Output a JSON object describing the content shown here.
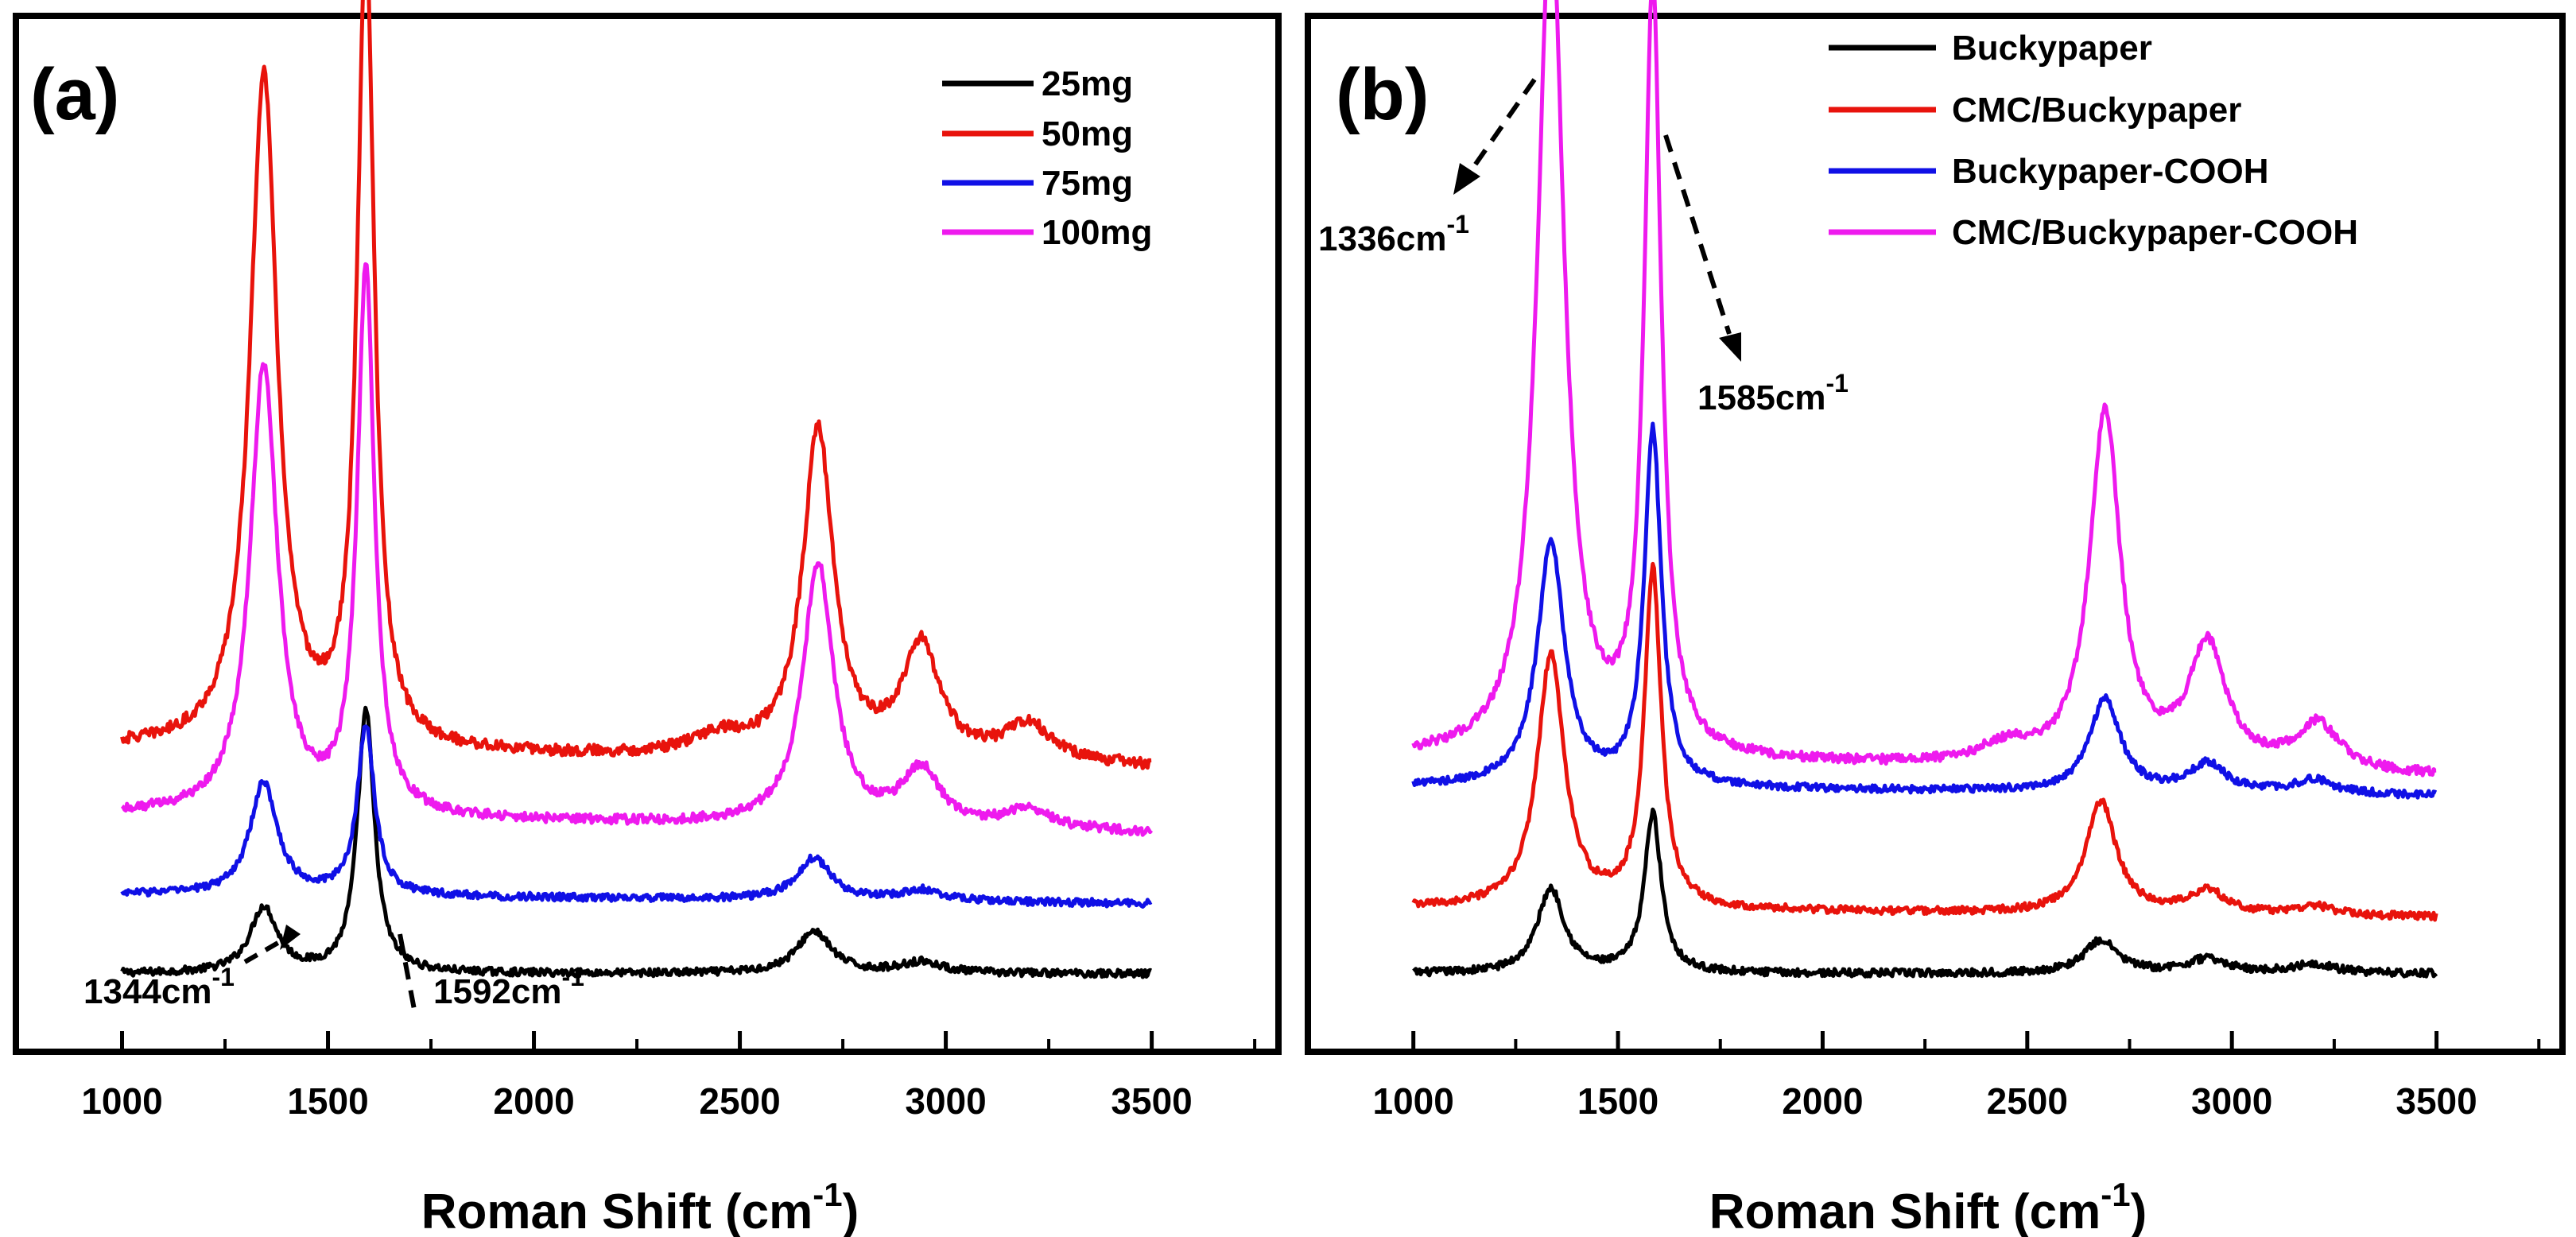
{
  "chart_data": [
    {
      "type": "line",
      "panel_label": "(a)",
      "xlabel": "Roman Shift (cm",
      "xlabel_sup": "-1",
      "xlabel_close": ")",
      "ylabel": "",
      "xlim": [
        750,
        3800
      ],
      "ylim": [
        -0.08,
        1.02
      ],
      "xticks": [
        1000,
        1500,
        2000,
        2500,
        3000,
        3500
      ],
      "xtick_labels": [
        "1000",
        "1500",
        "2000",
        "2500",
        "3000",
        "3500"
      ],
      "grid": false,
      "legend_position": "top-right",
      "series": [
        {
          "name": "25mg",
          "color": "#000000",
          "baseline": 0.0,
          "slope": 0.0,
          "noise": 0.004,
          "peaks": [
            [
              1344,
              0.07,
              40
            ],
            [
              1592,
              0.28,
              25
            ],
            [
              2680,
              0.045,
              50
            ],
            [
              2940,
              0.012,
              60
            ]
          ]
        },
        {
          "name": "50mg",
          "color": "#e8130c",
          "baseline": 0.24,
          "slope": -0.02,
          "noise": 0.006,
          "peaks": [
            [
              1344,
              0.72,
              40
            ],
            [
              1592,
              0.86,
              25
            ],
            [
              2690,
              0.35,
              45
            ],
            [
              2940,
              0.12,
              55
            ],
            [
              2450,
              0.02,
              80
            ],
            [
              3200,
              0.04,
              70
            ]
          ]
        },
        {
          "name": "75mg",
          "color": "#1010e6",
          "baseline": 0.085,
          "slope": -0.01,
          "noise": 0.004,
          "peaks": [
            [
              1344,
              0.12,
              40
            ],
            [
              1592,
              0.18,
              25
            ],
            [
              2680,
              0.045,
              50
            ],
            [
              2940,
              0.012,
              60
            ]
          ]
        },
        {
          "name": "100mg",
          "color": "#ee1aee",
          "baseline": 0.17,
          "slope": -0.02,
          "noise": 0.005,
          "peaks": [
            [
              1344,
              0.48,
              40
            ],
            [
              1592,
              0.58,
              25
            ],
            [
              2690,
              0.28,
              45
            ],
            [
              2940,
              0.06,
              55
            ],
            [
              3200,
              0.02,
              70
            ]
          ]
        }
      ],
      "annotations": [
        {
          "text": "1344cm",
          "sup": "-1",
          "x": 1344
        },
        {
          "text": "1592cm",
          "sup": "-1",
          "x": 1592
        }
      ]
    },
    {
      "type": "line",
      "panel_label": "(b)",
      "xlabel": "Roman Shift (cm",
      "xlabel_sup": "-1",
      "xlabel_close": ")",
      "ylabel": "",
      "xlim": [
        750,
        3800
      ],
      "ylim": [
        -0.08,
        1.02
      ],
      "xticks": [
        1000,
        1500,
        2000,
        2500,
        3000,
        3500
      ],
      "xtick_labels": [
        "1000",
        "1500",
        "2000",
        "2500",
        "3000",
        "3500"
      ],
      "grid": false,
      "legend_position": "top-right",
      "series": [
        {
          "name": "Buckypaper",
          "color": "#000000",
          "baseline": 0.0,
          "slope": 0.0,
          "noise": 0.004,
          "peaks": [
            [
              1336,
              0.09,
              40
            ],
            [
              1585,
              0.17,
              25
            ],
            [
              2680,
              0.035,
              50
            ],
            [
              2940,
              0.015,
              60
            ],
            [
              3200,
              0.01,
              60
            ]
          ]
        },
        {
          "name": "CMC/Buckypaper",
          "color": "#e8130c",
          "baseline": 0.07,
          "slope": -0.01,
          "noise": 0.004,
          "peaks": [
            [
              1336,
              0.27,
              40
            ],
            [
              1585,
              0.36,
              25
            ],
            [
              2680,
              0.12,
              45
            ],
            [
              2940,
              0.025,
              55
            ],
            [
              3200,
              0.01,
              60
            ]
          ]
        },
        {
          "name": "Buckypaper-COOH",
          "color": "#1010e6",
          "baseline": 0.2,
          "slope": -0.01,
          "noise": 0.004,
          "peaks": [
            [
              1336,
              0.26,
              40
            ],
            [
              1585,
              0.38,
              25
            ],
            [
              2690,
              0.1,
              45
            ],
            [
              2940,
              0.03,
              55
            ],
            [
              3200,
              0.015,
              60
            ]
          ]
        },
        {
          "name": "CMC/Buckypaper-COOH",
          "color": "#ee1aee",
          "baseline": 0.23,
          "slope": -0.02,
          "noise": 0.005,
          "peaks": [
            [
              1336,
              0.9,
              40
            ],
            [
              1585,
              0.82,
              25
            ],
            [
              2690,
              0.38,
              45
            ],
            [
              2940,
              0.13,
              55
            ],
            [
              3210,
              0.05,
              65
            ],
            [
              2450,
              0.02,
              80
            ]
          ]
        }
      ],
      "annotations": [
        {
          "text": "1336cm",
          "sup": "-1",
          "x": 1336
        },
        {
          "text": "1585cm",
          "sup": "-1",
          "x": 1585
        }
      ]
    }
  ]
}
